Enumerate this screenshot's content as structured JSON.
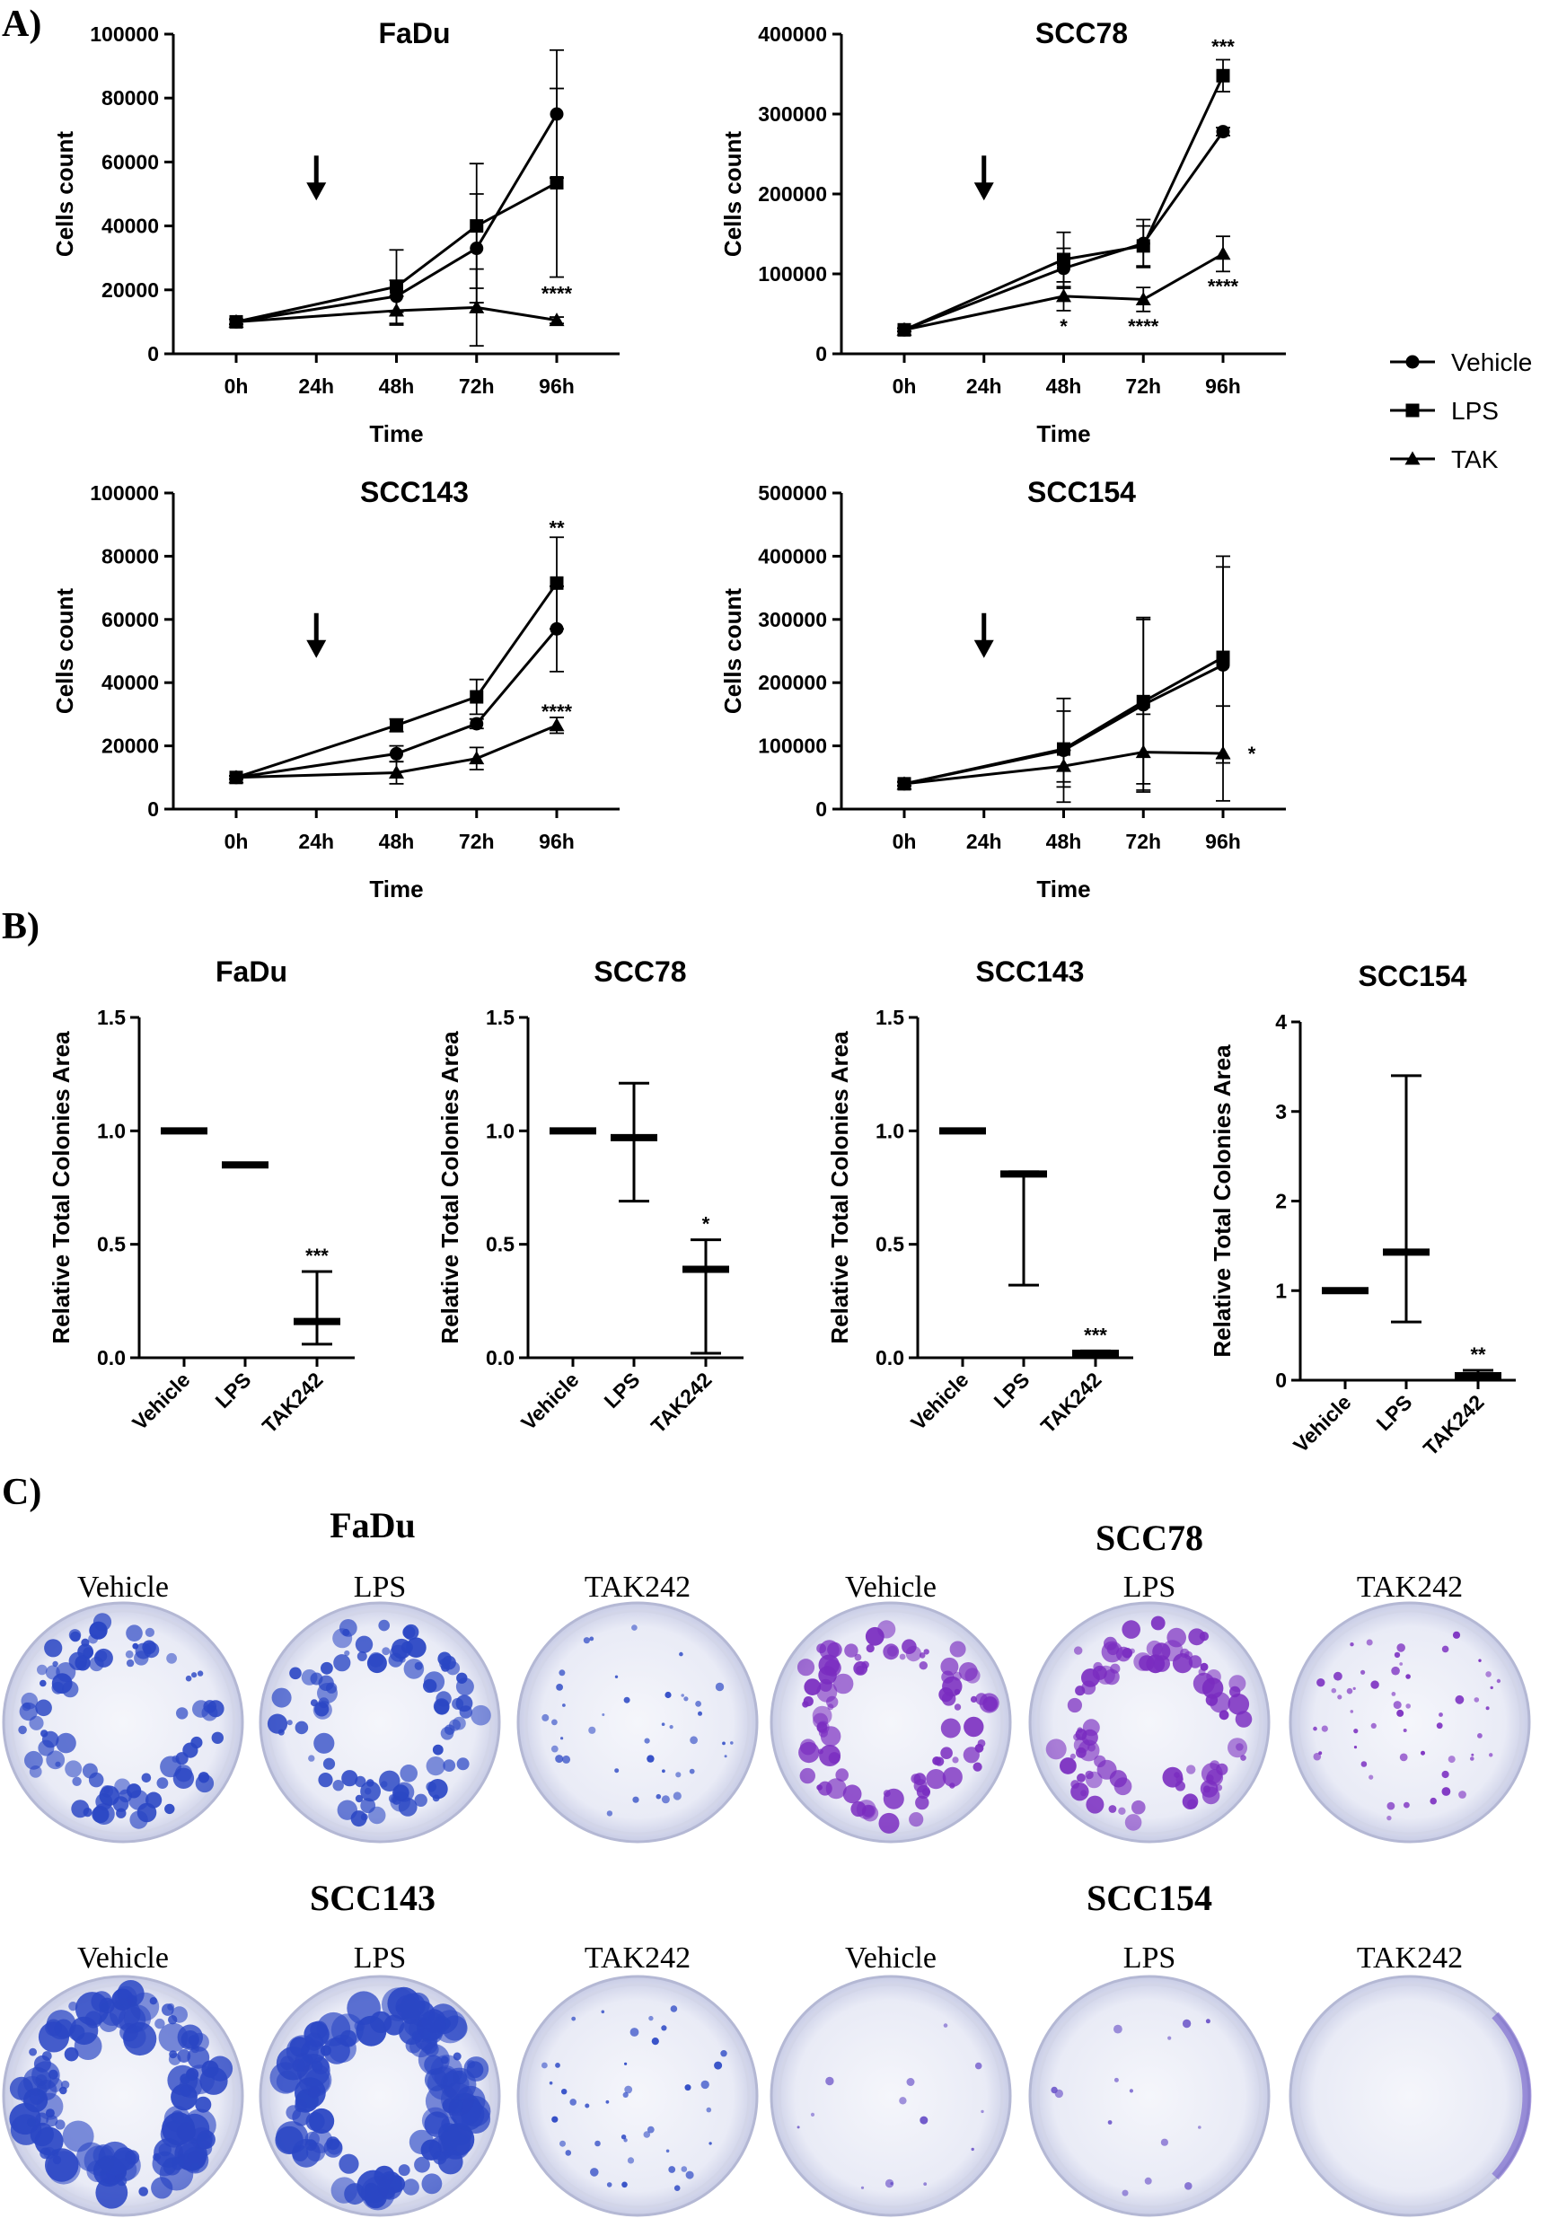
{
  "panels": {
    "a": "A)",
    "b": "B)",
    "c": "C)"
  },
  "legend": [
    {
      "name": "Vehicle",
      "marker": "circle"
    },
    {
      "name": "LPS",
      "marker": "square"
    },
    {
      "name": "TAK",
      "marker": "triangle"
    }
  ],
  "chart_data": [
    {
      "type": "line",
      "title": "FaDu",
      "xlabel": "Time",
      "ylabel": "Cells count",
      "categories": [
        "0h",
        "24h",
        "48h",
        "72h",
        "96h"
      ],
      "ylim": [
        0,
        100000
      ],
      "yticks": [
        0,
        20000,
        40000,
        60000,
        80000,
        100000
      ],
      "arrow_at": "24h",
      "series": [
        {
          "name": "Vehicle",
          "x": [
            "0h",
            "48h",
            "72h",
            "96h"
          ],
          "values": [
            10000,
            18000,
            33000,
            75000
          ],
          "errors": [
            800,
            5000,
            17000,
            20000
          ]
        },
        {
          "name": "LPS",
          "x": [
            "0h",
            "48h",
            "72h",
            "96h"
          ],
          "values": [
            10000,
            21000,
            40000,
            53500
          ],
          "errors": [
            800,
            11500,
            19500,
            29500
          ]
        },
        {
          "name": "TAK",
          "x": [
            "0h",
            "48h",
            "72h",
            "96h"
          ],
          "values": [
            10000,
            13500,
            14500,
            10500
          ],
          "errors": [
            800,
            4500,
            12000,
            1000
          ]
        }
      ],
      "annotations": [
        {
          "at": "96h",
          "y": 19000,
          "text": "****"
        }
      ]
    },
    {
      "type": "line",
      "title": "SCC78",
      "xlabel": "Time",
      "ylabel": "Cells count",
      "categories": [
        "0h",
        "24h",
        "48h",
        "72h",
        "96h"
      ],
      "ylim": [
        0,
        400000
      ],
      "yticks": [
        0,
        100000,
        200000,
        300000,
        400000
      ],
      "arrow_at": "24h",
      "series": [
        {
          "name": "Vehicle",
          "x": [
            "0h",
            "48h",
            "72h",
            "96h"
          ],
          "values": [
            30000,
            107000,
            138000,
            278000
          ],
          "errors": [
            2000,
            25000,
            30000,
            5000
          ]
        },
        {
          "name": "LPS",
          "x": [
            "0h",
            "48h",
            "72h",
            "96h"
          ],
          "values": [
            30000,
            118000,
            135000,
            348000
          ],
          "errors": [
            2000,
            34000,
            25000,
            20000
          ]
        },
        {
          "name": "TAK",
          "x": [
            "0h",
            "48h",
            "72h",
            "96h"
          ],
          "values": [
            30000,
            72000,
            68000,
            125000
          ],
          "errors": [
            2000,
            18000,
            15000,
            22000
          ]
        }
      ],
      "annotations": [
        {
          "at": "96h",
          "y": 385000,
          "text": "***"
        },
        {
          "at": "96h",
          "y": 85000,
          "text": "****"
        },
        {
          "at": "48h",
          "y": 35000,
          "text": "*"
        },
        {
          "at": "72h",
          "y": 35000,
          "text": "****"
        }
      ]
    },
    {
      "type": "line",
      "title": "SCC143",
      "xlabel": "Time",
      "ylabel": "Cells count",
      "categories": [
        "0h",
        "24h",
        "48h",
        "72h",
        "96h"
      ],
      "ylim": [
        0,
        100000
      ],
      "yticks": [
        0,
        20000,
        40000,
        60000,
        80000,
        100000
      ],
      "arrow_at": "24h",
      "series": [
        {
          "name": "Vehicle",
          "x": [
            "0h",
            "48h",
            "72h",
            "96h"
          ],
          "values": [
            10000,
            17500,
            27000,
            57000
          ],
          "errors": [
            500,
            2500,
            1500,
            13500
          ]
        },
        {
          "name": "LPS",
          "x": [
            "0h",
            "48h",
            "72h",
            "96h"
          ],
          "values": [
            10000,
            26500,
            35500,
            71500
          ],
          "errors": [
            500,
            2000,
            5500,
            14500
          ]
        },
        {
          "name": "TAK",
          "x": [
            "0h",
            "48h",
            "72h",
            "96h"
          ],
          "values": [
            10000,
            11500,
            16000,
            26500
          ],
          "errors": [
            500,
            3500,
            3500,
            2500
          ]
        }
      ],
      "annotations": [
        {
          "at": "96h",
          "y": 89000,
          "text": "**"
        },
        {
          "at": "96h",
          "y": 31000,
          "text": "****"
        }
      ]
    },
    {
      "type": "line",
      "title": "SCC154",
      "xlabel": "Time",
      "ylabel": "Cells count",
      "categories": [
        "0h",
        "24h",
        "48h",
        "72h",
        "96h"
      ],
      "ylim": [
        0,
        500000
      ],
      "yticks": [
        0,
        100000,
        200000,
        300000,
        400000,
        500000
      ],
      "arrow_at": "24h",
      "series": [
        {
          "name": "Vehicle",
          "x": [
            "0h",
            "48h",
            "72h",
            "96h"
          ],
          "values": [
            40000,
            93000,
            165000,
            228000
          ],
          "errors": [
            3000,
            82000,
            138000,
            155000
          ]
        },
        {
          "name": "LPS",
          "x": [
            "0h",
            "48h",
            "72h",
            "96h"
          ],
          "values": [
            40000,
            95000,
            170000,
            240000
          ],
          "errors": [
            3000,
            60000,
            130000,
            160000
          ]
        },
        {
          "name": "TAK",
          "x": [
            "0h",
            "48h",
            "72h",
            "96h"
          ],
          "values": [
            40000,
            68000,
            90000,
            88000
          ],
          "errors": [
            3000,
            25000,
            60000,
            75000
          ]
        }
      ],
      "annotations": [
        {
          "at": "96h",
          "y": 88000,
          "text": "*",
          "side": "right"
        }
      ]
    },
    {
      "type": "scatter",
      "title": "FaDu",
      "ylabel": "Relative Total Colonies Area",
      "categories": [
        "Vehicle",
        "LPS",
        "TAK242"
      ],
      "ylim": [
        0,
        1.5
      ],
      "yticks": [
        "0.0",
        "0.5",
        "1.0",
        "1.5"
      ],
      "series": [
        {
          "name": "mean",
          "values": [
            1.0,
            0.85,
            0.16
          ],
          "err_low": [
            1.0,
            0.85,
            0.06
          ],
          "err_high": [
            1.0,
            0.85,
            0.38
          ]
        }
      ],
      "annotations": [
        {
          "category": "TAK242",
          "text": "***"
        }
      ]
    },
    {
      "type": "scatter",
      "title": "SCC78",
      "ylabel": "Relative Total Colonies Area",
      "categories": [
        "Vehicle",
        "LPS",
        "TAK242"
      ],
      "ylim": [
        0,
        1.5
      ],
      "yticks": [
        "0.0",
        "0.5",
        "1.0",
        "1.5"
      ],
      "series": [
        {
          "name": "mean",
          "values": [
            1.0,
            0.97,
            0.39
          ],
          "err_low": [
            1.0,
            0.69,
            0.02
          ],
          "err_high": [
            1.0,
            1.21,
            0.52
          ]
        }
      ],
      "annotations": [
        {
          "category": "TAK242",
          "text": "*"
        }
      ]
    },
    {
      "type": "scatter",
      "title": "SCC143",
      "ylabel": "Relative Total Colonies Area",
      "categories": [
        "Vehicle",
        "LPS",
        "TAK242"
      ],
      "ylim": [
        0,
        1.5
      ],
      "yticks": [
        "0.0",
        "0.5",
        "1.0",
        "1.5"
      ],
      "series": [
        {
          "name": "mean",
          "values": [
            1.0,
            0.81,
            0.02
          ],
          "err_low": [
            1.0,
            0.32,
            0.01
          ],
          "err_high": [
            1.0,
            0.82,
            0.03
          ]
        }
      ],
      "annotations": [
        {
          "category": "TAK242",
          "text": "***"
        }
      ]
    },
    {
      "type": "scatter",
      "title": "SCC154",
      "ylabel": "Relative Total Colonies Area",
      "categories": [
        "Vehicle",
        "LPS",
        "TAK242"
      ],
      "ylim": [
        0,
        4
      ],
      "yticks": [
        "0",
        "1",
        "2",
        "3",
        "4"
      ],
      "series": [
        {
          "name": "mean",
          "values": [
            1.0,
            1.43,
            0.05
          ],
          "err_low": [
            1.0,
            0.65,
            0.0
          ],
          "err_high": [
            1.0,
            3.4,
            0.11
          ]
        }
      ],
      "annotations": [
        {
          "category": "TAK242",
          "text": "**"
        }
      ]
    }
  ],
  "photos": [
    {
      "title": "FaDu",
      "labels": [
        "Vehicle",
        "LPS",
        "TAK242"
      ],
      "color": "#2a46c4",
      "density": [
        "high",
        "high",
        "low"
      ]
    },
    {
      "title": "SCC78",
      "labels": [
        "Vehicle",
        "LPS",
        "TAK242"
      ],
      "color": "#7a2cc0",
      "density": [
        "high",
        "high",
        "medium"
      ]
    },
    {
      "title": "SCC143",
      "labels": [
        "Vehicle",
        "LPS",
        "TAK242"
      ],
      "color": "#2a46c4",
      "density": [
        "very-high",
        "very-high",
        "low"
      ]
    },
    {
      "title": "SCC154",
      "labels": [
        "Vehicle",
        "LPS",
        "TAK242"
      ],
      "color": "#6a52c8",
      "density": [
        "sparse",
        "sparse",
        "none"
      ]
    }
  ]
}
